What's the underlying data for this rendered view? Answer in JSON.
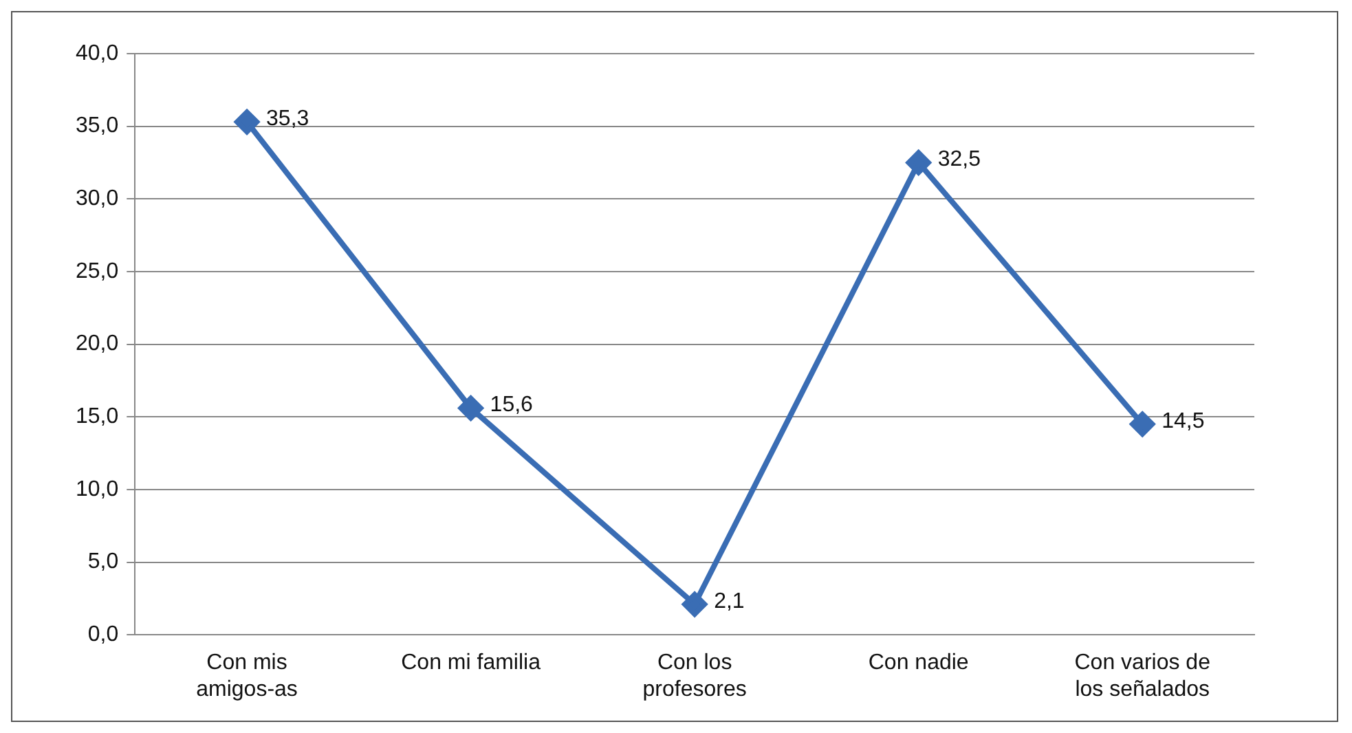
{
  "chart_data": {
    "type": "line",
    "categories": [
      "Con mis amigos-as",
      "Con mi familia",
      "Con los profesores",
      "Con nadie",
      "Con varios de los señalados"
    ],
    "series": [
      {
        "color": "#3a6db4",
        "values": [
          35.3,
          15.6,
          2.1,
          32.5,
          14.5
        ],
        "value_labels": [
          "35,3",
          "15,6",
          "2,1",
          "32,5",
          "14,5"
        ]
      }
    ],
    "ylim": [
      0,
      40
    ],
    "yticks": [
      {
        "value": 0,
        "label": "0,0"
      },
      {
        "value": 5,
        "label": "5,0"
      },
      {
        "value": 10,
        "label": "10,0"
      },
      {
        "value": 15,
        "label": "15,0"
      },
      {
        "value": 20,
        "label": "20,0"
      },
      {
        "value": 25,
        "label": "25,0"
      },
      {
        "value": 30,
        "label": "30,0"
      },
      {
        "value": 35,
        "label": "35,0"
      },
      {
        "value": 40,
        "label": "40,0"
      }
    ],
    "grid": "y",
    "legend": false,
    "marker": "diamond",
    "line_style": "solid"
  }
}
